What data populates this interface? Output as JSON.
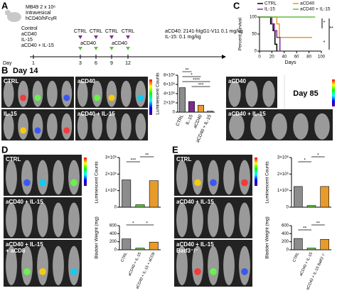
{
  "figure": {
    "panel_letters": [
      "A",
      "B",
      "C",
      "D",
      "E"
    ],
    "a": {
      "model": [
        "MB49 2 x 10⁶",
        "Intravesical",
        "hCD40/hFcγR"
      ],
      "groups": [
        "Control",
        "aCD40",
        "IL-15",
        "aCD40 + IL-15"
      ],
      "day_label": "Day",
      "days": [
        1,
        3,
        6,
        9,
        12
      ],
      "ctrl_marks": [
        "CTRL",
        "CTRL",
        "CTRL",
        "CTRL"
      ],
      "acd40_marks": [
        "aCD40",
        "aCD40"
      ],
      "doses": [
        "aCD40: 2141-hIgG1-V11 0.1 mg/kg",
        "IL-15: 0.1 mg/kg"
      ]
    },
    "b": {
      "day": "Day 14",
      "image_labels": [
        "CTRL",
        "aCD40",
        "IL-15",
        "aCD40 + IL-15"
      ],
      "late_day": "Day 85",
      "late_labels": [
        "aCD40",
        "aCD40 + IL-15"
      ]
    },
    "d": {
      "image_labels": [
        "CTRL",
        "aCD40 + IL-15",
        "aCD40 + IL-15\n+ aCD8"
      ]
    },
    "e": {
      "image_labels": [
        "CTRL",
        "aCD40 + IL-15",
        "aCD40 + IL-15\nBatf3⁻/⁻"
      ]
    }
  },
  "chart_data": [
    {
      "type": "line",
      "ylabel": "Percent survival",
      "xlabel": "Days",
      "xlim": [
        0,
        100
      ],
      "ylim": [
        0,
        100
      ],
      "xticks": [
        0,
        20,
        40,
        60,
        80,
        100
      ],
      "yticks": [
        0,
        50,
        100
      ],
      "series": [
        {
          "name": "CTRL",
          "color": "#000000",
          "x": [
            0,
            18,
            18,
            22,
            22,
            25,
            25,
            28,
            28
          ],
          "values": [
            100,
            100,
            80,
            80,
            60,
            60,
            20,
            20,
            0
          ]
        },
        {
          "name": "aCD40",
          "color": "#e69b2a",
          "x": [
            0,
            28,
            28,
            32,
            32,
            85
          ],
          "values": [
            100,
            100,
            80,
            80,
            40,
            40
          ]
        },
        {
          "name": "IL-15",
          "color": "#7b2d8e",
          "x": [
            0,
            20,
            20,
            24,
            24,
            28,
            28,
            33,
            33
          ],
          "values": [
            100,
            100,
            80,
            80,
            60,
            60,
            40,
            40,
            0
          ]
        },
        {
          "name": "aCD40 + IL-15",
          "color": "#5fbf3f",
          "x": [
            0,
            90
          ],
          "values": [
            100,
            100
          ]
        }
      ],
      "annotations": [
        "*",
        "**",
        "*"
      ]
    },
    {
      "type": "bar",
      "ylabel": "Luminescent Counts",
      "categories": [
        "CTRL",
        "IL-15",
        "aCD40",
        "aCD40 + IL-15"
      ],
      "values": [
        5300000,
        2300000,
        1500000,
        200000
      ],
      "colors": [
        "#8c8c8c",
        "#7b2d8e",
        "#e69b2a",
        "#5fbf3f"
      ],
      "ylim": [
        0,
        8000000
      ],
      "yticks": [
        0,
        {
          "value": 2000000,
          "label": "2×10⁶"
        },
        {
          "value": 4000000,
          "label": "4×10⁶"
        },
        {
          "value": 6000000,
          "label": "6×10⁶"
        },
        {
          "value": 8000000,
          "label": "8×10⁶"
        }
      ],
      "annotations": [
        "**",
        "*",
        "****",
        "***"
      ]
    },
    {
      "type": "bar",
      "ylabel": "Luminescent Counts",
      "values": [
        1650000,
        150000,
        1600000
      ],
      "colors": [
        "#8c8c8c",
        "#5fbf3f",
        "#e69b2a"
      ],
      "ylim": [
        0,
        3000000
      ],
      "yticks": [
        0,
        {
          "value": 1000000,
          "label": "1×10⁶"
        },
        {
          "value": 2000000,
          "label": "2×10⁶"
        },
        {
          "value": 3000000,
          "label": "3×10⁶"
        }
      ],
      "annotations": [
        "***",
        "**"
      ]
    },
    {
      "type": "bar",
      "ylabel": "Bladder Weight (mg)",
      "categories": [
        "CTRL",
        "aCD40 + IL-15",
        "aCD40 + IL-15 + aCD8"
      ],
      "values": [
        270,
        40,
        190
      ],
      "colors": [
        "#8c8c8c",
        "#5fbf3f",
        "#e69b2a"
      ],
      "ylim": [
        0,
        600
      ],
      "yticks": [
        0,
        200,
        400,
        600
      ],
      "annotations": [
        "*",
        "*"
      ]
    },
    {
      "type": "bar",
      "ylabel": "Luminescent Counts",
      "values": [
        1250000,
        100000,
        1250000
      ],
      "colors": [
        "#8c8c8c",
        "#5fbf3f",
        "#e69b2a"
      ],
      "ylim": [
        0,
        3000000
      ],
      "yticks": [
        0,
        {
          "value": 1000000,
          "label": "1×10⁶"
        },
        {
          "value": 2000000,
          "label": "2×10⁶"
        },
        {
          "value": 3000000,
          "label": "3×10⁶"
        }
      ],
      "annotations": [
        "*",
        "*"
      ]
    },
    {
      "type": "bar",
      "ylabel": "Bladder Weight (mg)",
      "categories": [
        "CTRL",
        "aCD40 + IL-15",
        "aCD40 + IL-15 Batf3⁻/⁻"
      ],
      "values": [
        280,
        40,
        260
      ],
      "colors": [
        "#8c8c8c",
        "#5fbf3f",
        "#e69b2a"
      ],
      "ylim": [
        0,
        600
      ],
      "yticks": [
        0,
        200,
        400,
        600
      ],
      "annotations": [
        "**",
        "**"
      ]
    }
  ]
}
